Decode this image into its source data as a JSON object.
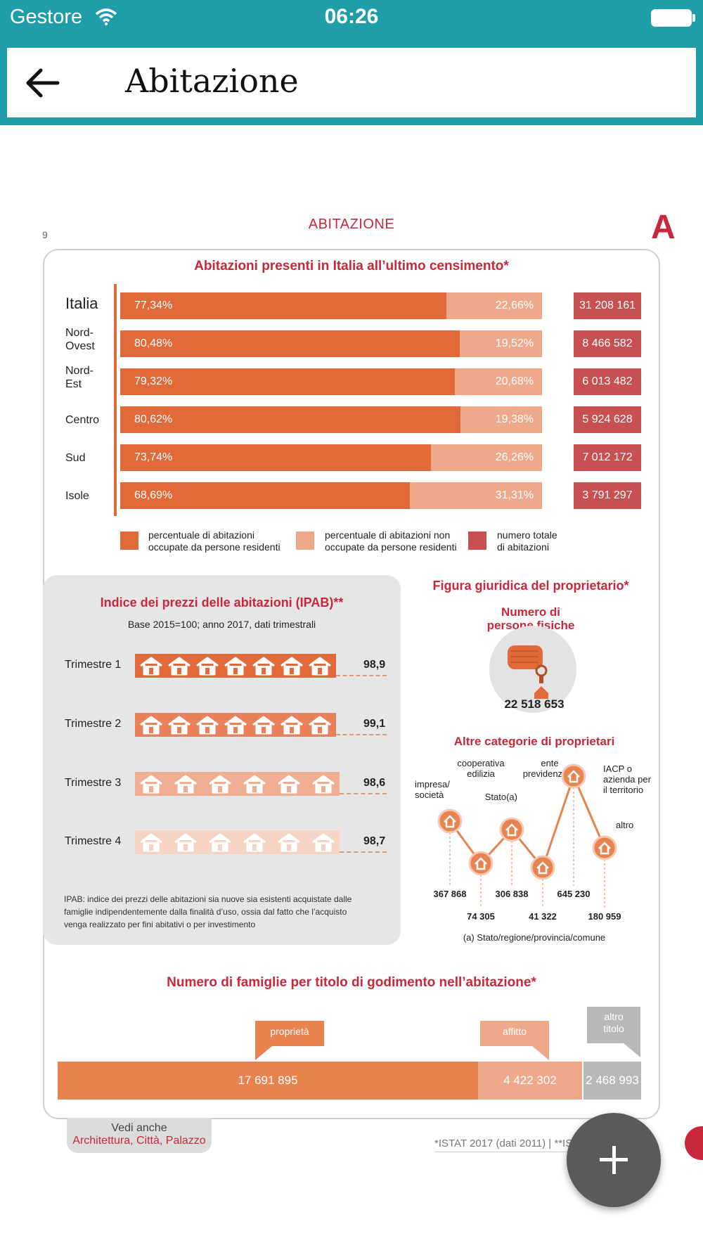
{
  "status": {
    "carrier": "Gestore",
    "time": "06:26"
  },
  "nav": {
    "title": "Abitazione"
  },
  "page": {
    "number": "9",
    "header": "ABITAZIONE",
    "letter": "A"
  },
  "census": {
    "title": "Abitazioni presenti in Italia all’ultimo censimento*",
    "rows": [
      {
        "label": "Italia",
        "occupied": "77,34%",
        "occupied_value": 77.34,
        "unoccupied": "22,66%",
        "total": "31 208 161"
      },
      {
        "label": "Nord-\nOvest",
        "occupied": "80,48%",
        "occupied_value": 80.48,
        "unoccupied": "19,52%",
        "total": "8 466 582"
      },
      {
        "label": "Nord-\nEst",
        "occupied": "79,32%",
        "occupied_value": 79.32,
        "unoccupied": "20,68%",
        "total": "6 013 482"
      },
      {
        "label": "Centro",
        "occupied": "80,62%",
        "occupied_value": 80.62,
        "unoccupied": "19,38%",
        "total": "5 924 628"
      },
      {
        "label": "Sud",
        "occupied": "73,74%",
        "occupied_value": 73.74,
        "unoccupied": "26,26%",
        "total": "7 012 172"
      },
      {
        "label": "Isole",
        "occupied": "68,69%",
        "occupied_value": 68.69,
        "unoccupied": "31,31%",
        "total": "3 791 297"
      }
    ],
    "legend": {
      "occupied": "percentuale di abitazioni\noccupate da persone residenti",
      "unoccupied": "percentuale di abitazioni non\noccupate da persone residenti",
      "total": "numero totale\ndi abitazioni"
    },
    "colors": {
      "occupied": "#e2693a",
      "unoccupied": "#eea98a",
      "total": "#c85050"
    }
  },
  "ipab": {
    "title": "Indice dei prezzi delle abitazioni (IPAB)**",
    "subtitle": "Base 2015=100; anno 2017, dati trimestrali",
    "quarters": [
      {
        "label": "Trimestre 1",
        "value": "98,9",
        "houses": 7,
        "color": "#e2693a"
      },
      {
        "label": "Trimestre 2",
        "value": "99,1",
        "houses": 7,
        "color": "#e8805a"
      },
      {
        "label": "Trimestre 3",
        "value": "98,6",
        "houses": 6,
        "color": "#efae92"
      },
      {
        "label": "Trimestre 4",
        "value": "98,7",
        "houses": 6,
        "color": "#f6d3c2"
      }
    ],
    "footnote": "IPAB: indice dei prezzi delle abitazioni sia nuove sia esistenti acquistate dalle famiglie indipendentemente dalla finalità d’uso, ossia dal fatto che l’acquisto venga realizzato per fini abitativi o per investimento"
  },
  "owner": {
    "title": "Figura giuridica del proprietario*",
    "persons_label": "Numero di\npersone fisiche",
    "persons_value": "22 518 653",
    "other_title": "Altre categorie di proprietari",
    "categories": [
      {
        "label": "impresa/\nsocietà",
        "value": "367 868"
      },
      {
        "label": "cooperativa\nedilizia",
        "value": "74 305"
      },
      {
        "label": "Stato(a)",
        "value": "306 838"
      },
      {
        "label": "ente\nprevidenziale",
        "value": "41 322"
      },
      {
        "label": "IACP o\nazienda per\nil territorio",
        "value": "645 230"
      },
      {
        "label": "altro",
        "value": "180 959"
      }
    ],
    "note": "(a) Stato/regione/provincia/comune"
  },
  "families": {
    "title": "Numero di famiglie per titolo di godimento nell’abitazione*",
    "segments": [
      {
        "label": "proprietà",
        "value": "17 691 895",
        "color": "#e8824f"
      },
      {
        "label": "affitto",
        "value": "4 422 302",
        "color": "#eea98a"
      },
      {
        "label": "altro\ntitolo",
        "value": "2 468 993",
        "color": "#b8b8b8"
      }
    ]
  },
  "see_also": {
    "label": "Vedi anche",
    "links": "Architettura, Città, Palazzo"
  },
  "source": "*ISTAT 2017 (dati 2011) | **IS",
  "fab": {
    "icon": "plus-icon"
  }
}
